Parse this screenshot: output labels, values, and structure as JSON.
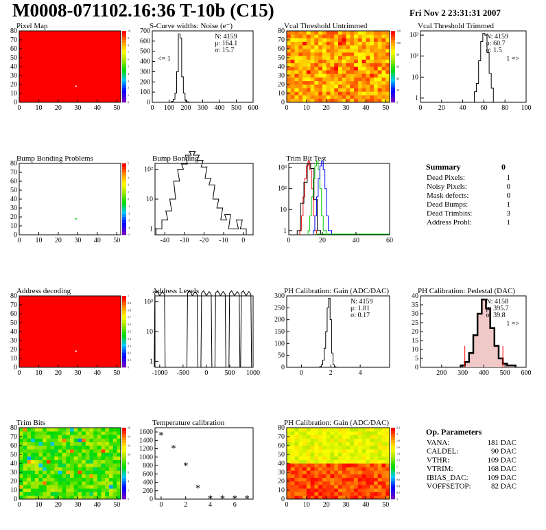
{
  "title": "M0008-071102.16:36 T-10b (C15)",
  "datetime": "Fri Nov  2 23:31:31 2007",
  "colors": {
    "frame": "#000000",
    "red": "#ff0000",
    "green": "#00cc00",
    "blue": "#0000ff",
    "hatch": "#cc0000",
    "stat_red": "#dd0000"
  },
  "chart_data": [
    {
      "type": "heatmap",
      "title": "Pixel Map",
      "xlim": [
        0,
        52
      ],
      "ylim": [
        0,
        80
      ],
      "xticks": [
        "0",
        "10",
        "20",
        "30",
        "40",
        "50"
      ],
      "yticks": [
        "0",
        "10",
        "20",
        "30",
        "40",
        "50",
        "60",
        "70",
        "80"
      ],
      "palette_ticks": [
        "0",
        "1",
        "2",
        "3",
        "4",
        "5",
        "6",
        "7",
        "8",
        "9",
        "10"
      ],
      "fill": "uniform-red",
      "marker": [
        29,
        18
      ]
    },
    {
      "type": "histogram",
      "title": "S-Curve widths: Noise (e⁻)",
      "xlim": [
        0,
        600
      ],
      "ylim": [
        0,
        700
      ],
      "xticks": [
        "0",
        "100",
        "200",
        "300",
        "400",
        "500",
        "600"
      ],
      "yticks": [
        "0",
        "100",
        "200",
        "300",
        "400",
        "500",
        "600",
        "700"
      ],
      "x": [
        110,
        120,
        130,
        140,
        150,
        160,
        170,
        180,
        190,
        200,
        210,
        220
      ],
      "values": [
        2,
        10,
        30,
        90,
        300,
        670,
        630,
        250,
        90,
        20,
        5,
        2
      ],
      "stats": {
        "entries": "N: 4159",
        "mean": "μ: 164.1",
        "sigma": "σ: 15.7"
      },
      "annotation": "<= 1"
    },
    {
      "type": "heatmap",
      "title": "Vcal Threshold Untrimmed",
      "xlim": [
        0,
        52
      ],
      "ylim": [
        0,
        80
      ],
      "xticks": [
        "0",
        "10",
        "20",
        "30",
        "40",
        "50"
      ],
      "yticks": [
        "0",
        "10",
        "20",
        "30",
        "40",
        "50",
        "60",
        "70",
        "80"
      ],
      "palette_ticks": [
        "0",
        "20",
        "40",
        "60",
        "80",
        "100",
        "120"
      ],
      "fill": "noise-orange"
    },
    {
      "type": "histogram",
      "title": "Vcal Threshold Trimmed",
      "log": true,
      "xlim": [
        0,
        100
      ],
      "xticks": [
        "0",
        "20",
        "40",
        "60",
        "80",
        "100"
      ],
      "yticks": [
        "1",
        "10",
        "10²",
        "10³"
      ],
      "x": [
        52,
        54,
        56,
        58,
        60,
        62,
        64,
        66,
        68
      ],
      "values": [
        2,
        5,
        60,
        500,
        1200,
        1000,
        150,
        15,
        3
      ],
      "stats": {
        "entries": "N: 4159",
        "mean": "μ: 60.7",
        "sigma": "σ:  1.5"
      },
      "annotation": "1 =>"
    },
    {
      "type": "heatmap",
      "title": "Bump Bonding Problems",
      "xlim": [
        0,
        52
      ],
      "ylim": [
        0,
        80
      ],
      "xticks": [
        "0",
        "10",
        "20",
        "30",
        "40",
        "50"
      ],
      "yticks": [
        "0",
        "10",
        "20",
        "30",
        "40",
        "50",
        "60",
        "70",
        "80"
      ],
      "palette_ticks": [
        "-5",
        "-4",
        "-3",
        "-2",
        "-1",
        "0",
        "1",
        "2",
        "3",
        "4",
        "5"
      ],
      "fill": "empty",
      "marker": [
        29,
        18
      ]
    },
    {
      "type": "histogram",
      "title": "Bump Bonding",
      "log": true,
      "xlim": [
        -45,
        5
      ],
      "xticks": [
        "-40",
        "-30",
        "-20",
        "-10",
        "0"
      ],
      "yticks": [
        "1",
        "10",
        "10²"
      ],
      "x": [
        -43,
        -40,
        -38,
        -36,
        -34,
        -32,
        -30,
        -28,
        -26,
        -24,
        -22,
        -20,
        -18,
        -16,
        -14,
        -12,
        -10,
        -8,
        -6,
        -4,
        -2,
        0
      ],
      "values": [
        1,
        2,
        4,
        10,
        40,
        100,
        150,
        300,
        400,
        300,
        200,
        120,
        50,
        30,
        10,
        5,
        2,
        3,
        1,
        1,
        2,
        1
      ]
    },
    {
      "type": "histogram",
      "title": "Trim Bit Test",
      "log": true,
      "xlim": [
        0,
        60
      ],
      "xticks": [
        "0",
        "20",
        "40",
        "60"
      ],
      "yticks": [
        "1",
        "10",
        "10²",
        "10³"
      ],
      "series": [
        {
          "color": "#ff0000",
          "x": [
            7,
            8,
            9,
            10,
            11,
            12,
            13,
            14,
            15,
            16
          ],
          "values": [
            1,
            5,
            40,
            300,
            1200,
            2000,
            800,
            100,
            5,
            1
          ]
        },
        {
          "color": "#000000",
          "x": [
            6,
            8,
            10,
            12,
            14,
            16,
            18
          ],
          "values": [
            1,
            20,
            200,
            1500,
            900,
            30,
            1
          ]
        },
        {
          "color": "#00cc00",
          "x": [
            12,
            13,
            14,
            15,
            16,
            17,
            18,
            19,
            20,
            21,
            22
          ],
          "values": [
            1,
            5,
            40,
            300,
            1200,
            2000,
            800,
            100,
            5,
            1,
            1
          ]
        },
        {
          "color": "#0000ff",
          "x": [
            15,
            16,
            17,
            18,
            19,
            20,
            21,
            22,
            23,
            24,
            25
          ],
          "values": [
            1,
            5,
            40,
            300,
            1200,
            2000,
            800,
            100,
            5,
            1,
            1
          ]
        }
      ]
    },
    {
      "type": "histogram",
      "title": "Address Levels",
      "log": true,
      "xlim": [
        -1100,
        1000
      ],
      "xticks": [
        "-1000",
        "-500",
        "0",
        "500",
        "1000"
      ],
      "yticks": [
        "1",
        "10",
        "10²"
      ],
      "peaks": [
        -1000,
        -300,
        0,
        300,
        600,
        850
      ],
      "peak_height": 200
    },
    {
      "type": "histogram",
      "title": "PH Calibration: Gain (ADC/DAC)",
      "xlim": [
        -1,
        6
      ],
      "ylim": [
        0,
        300
      ],
      "xticks": [
        "0",
        "2",
        "4"
      ],
      "yticks": [
        "0",
        "50",
        "100",
        "150",
        "200",
        "250",
        "300"
      ],
      "x": [
        1.3,
        1.4,
        1.5,
        1.6,
        1.7,
        1.8,
        1.9,
        2.0,
        2.1,
        2.2,
        2.3
      ],
      "values": [
        3,
        10,
        30,
        80,
        150,
        250,
        290,
        200,
        60,
        10,
        2
      ],
      "stats": {
        "entries": "N: 4159",
        "mean": "μ: 1.81",
        "sigma": "σ: 0.17"
      }
    },
    {
      "type": "histogram",
      "title": "PH Calibration: Pedestal (DAC)",
      "xlim": [
        100,
        600
      ],
      "ylim": [
        0,
        40
      ],
      "xticks": [
        "200",
        "300",
        "400",
        "500",
        "600"
      ],
      "yticks": [
        "0",
        "5",
        "10",
        "15",
        "20",
        "25",
        "30",
        "35",
        "40"
      ],
      "x": [
        300,
        320,
        340,
        360,
        380,
        400,
        420,
        440,
        460,
        480,
        500,
        520,
        540
      ],
      "values": [
        1,
        3,
        8,
        18,
        30,
        38,
        33,
        22,
        12,
        5,
        2,
        1,
        1
      ],
      "stats": {
        "entries": "N: 4158",
        "mean": "μ: 395.7",
        "sigma": "σ: 39.8"
      },
      "annotation": "1 =>"
    },
    {
      "type": "heatmap",
      "title": "Address decoding",
      "xlim": [
        0,
        52
      ],
      "ylim": [
        0,
        80
      ],
      "xticks": [
        "0",
        "10",
        "20",
        "30",
        "40",
        "50"
      ],
      "yticks": [
        "0",
        "10",
        "20",
        "30",
        "40",
        "50",
        "60",
        "70",
        "80"
      ],
      "palette_ticks": [
        "0",
        "0.1",
        "0.2",
        "0.3",
        "0.4",
        "0.5",
        "0.6",
        "0.7",
        "0.8",
        "0.9",
        "1"
      ],
      "fill": "uniform-red",
      "marker": [
        29,
        18
      ]
    },
    {
      "type": "heatmap",
      "title": "Trim Bits",
      "xlim": [
        0,
        52
      ],
      "ylim": [
        0,
        80
      ],
      "xticks": [
        "0",
        "10",
        "20",
        "30",
        "40",
        "50"
      ],
      "yticks": [
        "0",
        "10",
        "20",
        "30",
        "40",
        "50",
        "60",
        "70",
        "80"
      ],
      "palette_ticks": [
        "0",
        "2",
        "4",
        "6",
        "8",
        "10",
        "12",
        "14",
        "16"
      ],
      "fill": "noise-green"
    },
    {
      "type": "scatter",
      "title": "Temperature calibration",
      "xlim": [
        -0.5,
        7.5
      ],
      "ylim": [
        0,
        1700
      ],
      "xticks": [
        "0",
        "2",
        "4",
        "6"
      ],
      "yticks": [
        "0",
        "200",
        "400",
        "600",
        "800",
        "1000",
        "1200",
        "1400",
        "1600"
      ],
      "x": [
        0,
        1,
        2,
        3,
        4,
        5,
        6,
        7
      ],
      "values": [
        1530,
        1220,
        800,
        270,
        20,
        20,
        20,
        20
      ]
    },
    {
      "type": "heatmap",
      "title": "PH Calibration: Gain (ADC/DAC)",
      "xlim": [
        0,
        52
      ],
      "ylim": [
        0,
        80
      ],
      "xticks": [
        "0",
        "10",
        "20",
        "30",
        "40",
        "50"
      ],
      "yticks": [
        "0",
        "10",
        "20",
        "30",
        "40",
        "50",
        "60",
        "70",
        "80"
      ],
      "palette_ticks": [
        "0",
        "0.2",
        "0.4",
        "0.6",
        "0.8",
        "1",
        "1.2",
        "1.4",
        "1.6",
        "1.8",
        "2",
        "2.2"
      ],
      "fill": "noise-gain"
    }
  ],
  "summary": {
    "title": "Summary",
    "total": "0",
    "rows": [
      {
        "label": "Dead Pixels:",
        "value": "1"
      },
      {
        "label": "Noisy Pixels:",
        "value": "0"
      },
      {
        "label": "Mask defects:",
        "value": "0"
      },
      {
        "label": "Dead Bumps:",
        "value": "1"
      },
      {
        "label": "Dead Trimbits:",
        "value": "3"
      },
      {
        "label": "Address Probl:",
        "value": "1"
      }
    ]
  },
  "op_params": {
    "title": "Op. Parameters",
    "rows": [
      {
        "label": "VANA:",
        "value": "181 DAC"
      },
      {
        "label": "CALDEL:",
        "value": "90 DAC"
      },
      {
        "label": "VTHR:",
        "value": "109 DAC"
      },
      {
        "label": "VTRIM:",
        "value": "168 DAC"
      },
      {
        "label": "IBIAS_DAC:",
        "value": "109 DAC"
      },
      {
        "label": "VOFFSETOP:",
        "value": "82 DAC"
      }
    ]
  }
}
